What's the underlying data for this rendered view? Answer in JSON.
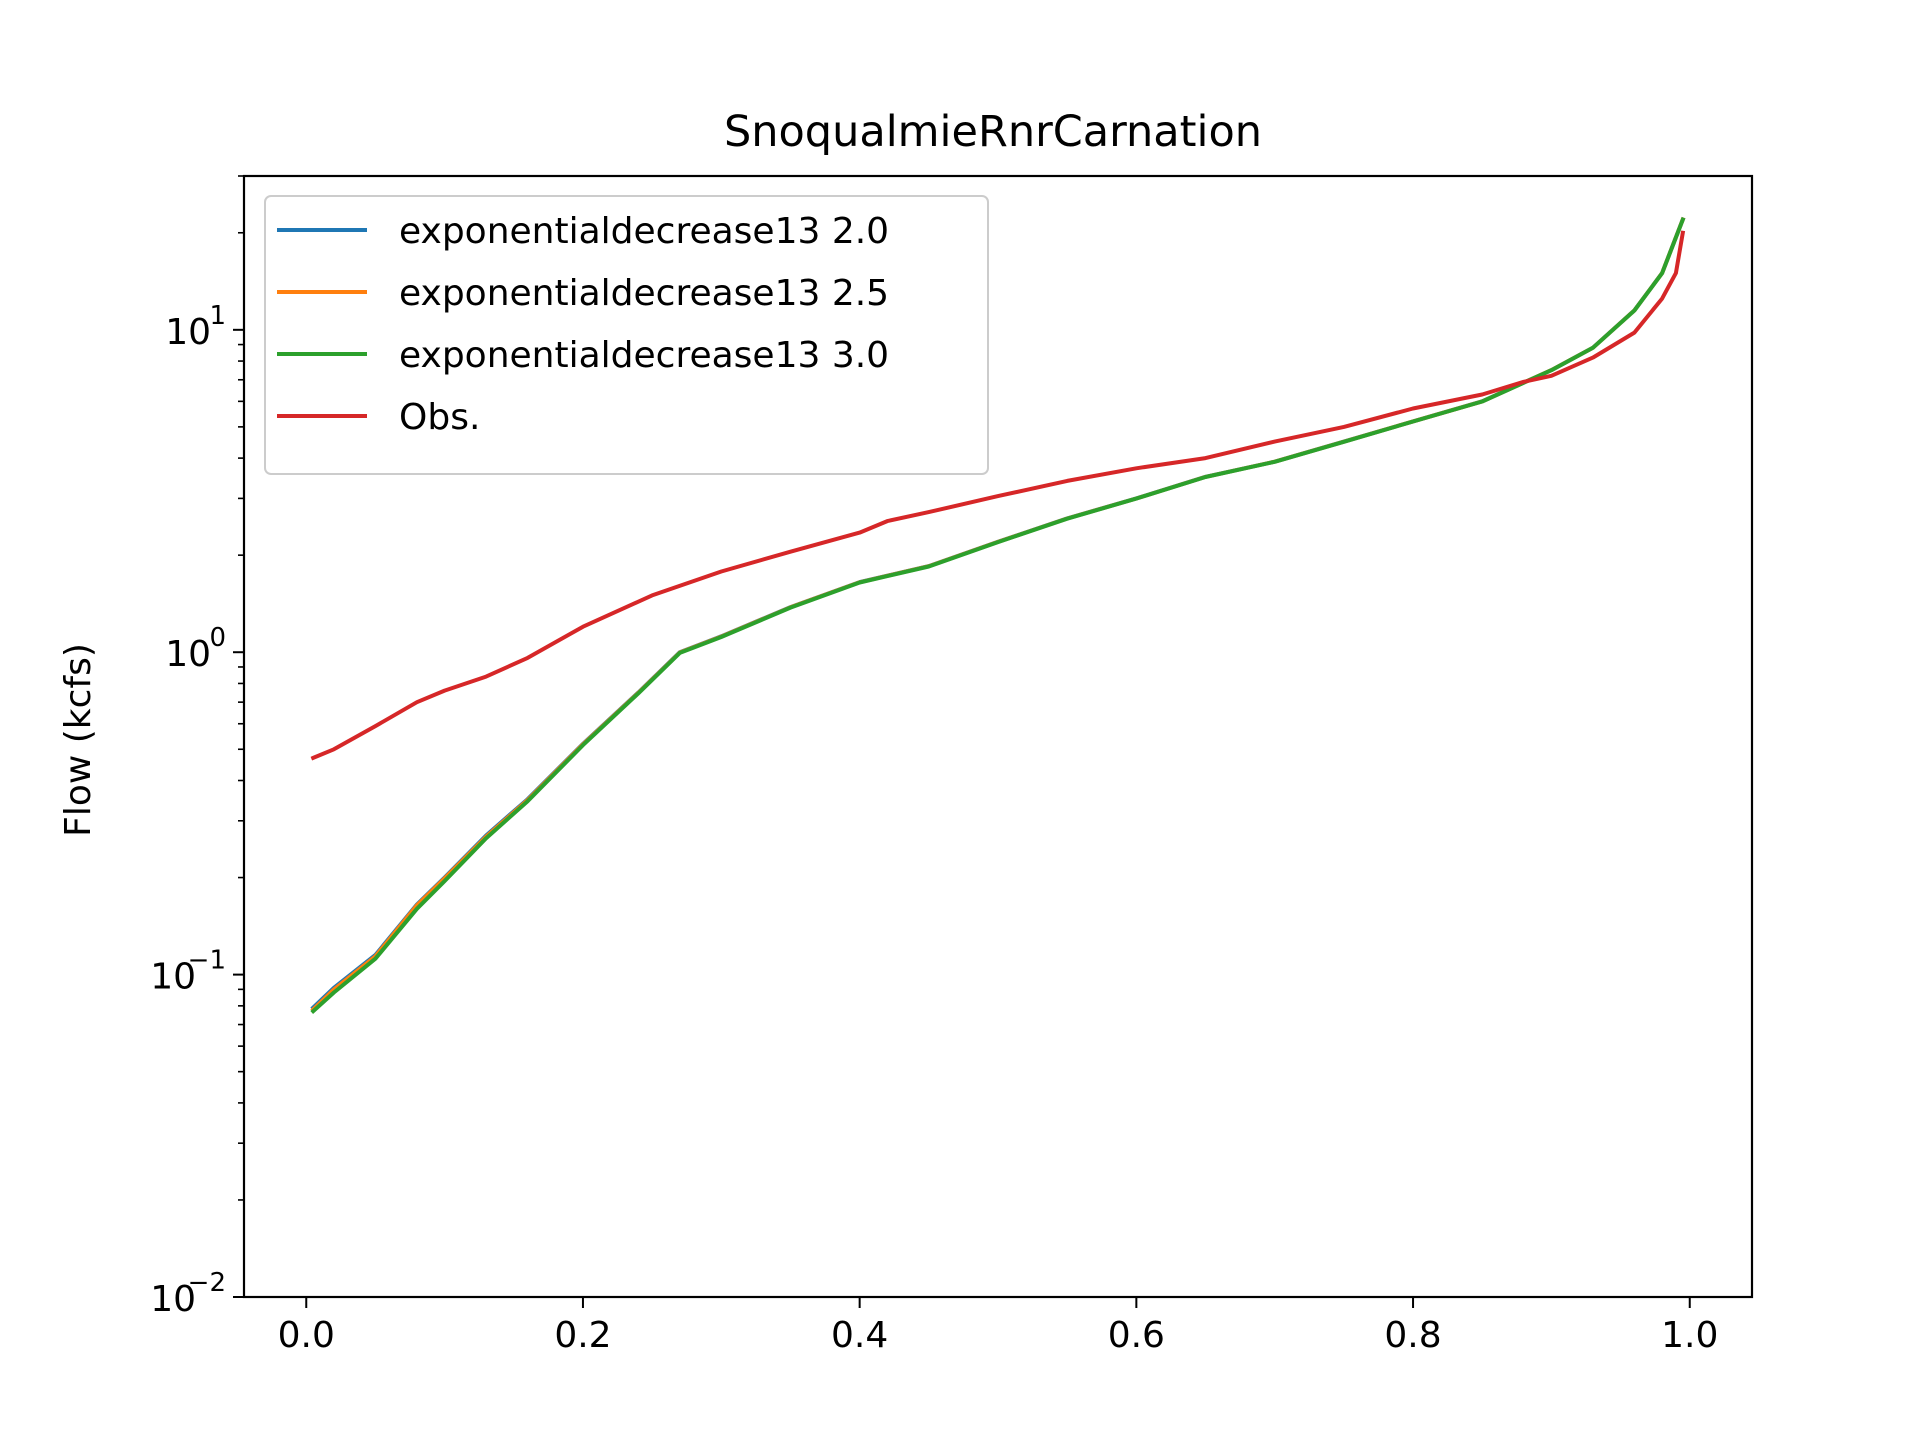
{
  "chart_data": {
    "type": "line",
    "title": "SnoqualmieRnrCarnation",
    "xlabel": "",
    "ylabel": "Flow (kcfs)",
    "xlim": [
      -0.045,
      1.045
    ],
    "ylim": [
      0.01,
      30
    ],
    "yscale": "log",
    "grid": false,
    "legend": "top-left",
    "xticks": [
      "0.0",
      "0.2",
      "0.4",
      "0.6",
      "0.8",
      "1.0"
    ],
    "yticks": [
      {
        "value": 0.01,
        "base": "10",
        "exp": "−2"
      },
      {
        "value": 0.1,
        "base": "10",
        "exp": "−1"
      },
      {
        "value": 1,
        "base": "10",
        "exp": "0"
      },
      {
        "value": 10,
        "base": "10",
        "exp": "1"
      }
    ],
    "series": [
      {
        "name": "exponentialdecrease13 2.0",
        "color": "#1f77b4",
        "x": [
          0.005,
          0.02,
          0.05,
          0.08,
          0.1,
          0.13,
          0.16,
          0.2,
          0.24,
          0.27,
          0.3,
          0.35,
          0.4,
          0.45,
          0.5,
          0.55,
          0.6,
          0.65,
          0.7,
          0.75,
          0.8,
          0.85,
          0.9,
          0.93,
          0.96,
          0.98,
          0.995
        ],
        "y": [
          0.079,
          0.091,
          0.115,
          0.165,
          0.2,
          0.27,
          0.35,
          0.52,
          0.75,
          1.0,
          1.12,
          1.38,
          1.65,
          1.85,
          2.2,
          2.6,
          3.0,
          3.5,
          3.9,
          4.5,
          5.2,
          6.0,
          7.5,
          8.8,
          11.5,
          15.0,
          22.0
        ]
      },
      {
        "name": "exponentialdecrease13 2.5",
        "color": "#ff7f0e",
        "x": [
          0.005,
          0.02,
          0.05,
          0.08,
          0.1,
          0.13,
          0.16,
          0.2,
          0.24,
          0.27,
          0.3,
          0.35,
          0.4,
          0.45,
          0.5,
          0.55,
          0.6,
          0.65,
          0.7,
          0.75,
          0.8,
          0.85,
          0.9,
          0.93,
          0.96,
          0.98,
          0.995
        ],
        "y": [
          0.078,
          0.09,
          0.114,
          0.164,
          0.199,
          0.268,
          0.348,
          0.518,
          0.748,
          0.998,
          1.118,
          1.378,
          1.648,
          1.848,
          2.198,
          2.598,
          2.998,
          3.498,
          3.898,
          4.498,
          5.198,
          5.998,
          7.498,
          8.798,
          11.49,
          14.99,
          21.99
        ]
      },
      {
        "name": "exponentialdecrease13 3.0",
        "color": "#2ca02c",
        "x": [
          0.005,
          0.02,
          0.05,
          0.08,
          0.1,
          0.13,
          0.16,
          0.2,
          0.24,
          0.27,
          0.3,
          0.35,
          0.4,
          0.45,
          0.5,
          0.55,
          0.6,
          0.65,
          0.7,
          0.75,
          0.8,
          0.85,
          0.9,
          0.93,
          0.96,
          0.98,
          0.995
        ],
        "y": [
          0.077,
          0.088,
          0.112,
          0.16,
          0.195,
          0.265,
          0.345,
          0.515,
          0.745,
          0.995,
          1.115,
          1.375,
          1.645,
          1.845,
          2.195,
          2.595,
          2.995,
          3.495,
          3.895,
          4.495,
          5.195,
          5.995,
          7.495,
          8.795,
          11.48,
          14.98,
          21.98
        ]
      },
      {
        "name": "Obs.",
        "color": "#d62728",
        "x": [
          0.005,
          0.02,
          0.05,
          0.08,
          0.1,
          0.13,
          0.16,
          0.2,
          0.25,
          0.3,
          0.35,
          0.4,
          0.42,
          0.45,
          0.5,
          0.55,
          0.6,
          0.65,
          0.7,
          0.75,
          0.8,
          0.85,
          0.88,
          0.9,
          0.93,
          0.96,
          0.98,
          0.99,
          0.995
        ],
        "y": [
          0.47,
          0.5,
          0.59,
          0.7,
          0.76,
          0.84,
          0.96,
          1.2,
          1.5,
          1.78,
          2.05,
          2.35,
          2.55,
          2.72,
          3.05,
          3.4,
          3.72,
          4.0,
          4.5,
          5.0,
          5.7,
          6.3,
          6.9,
          7.2,
          8.2,
          9.8,
          12.5,
          15.0,
          20.0
        ]
      }
    ]
  }
}
